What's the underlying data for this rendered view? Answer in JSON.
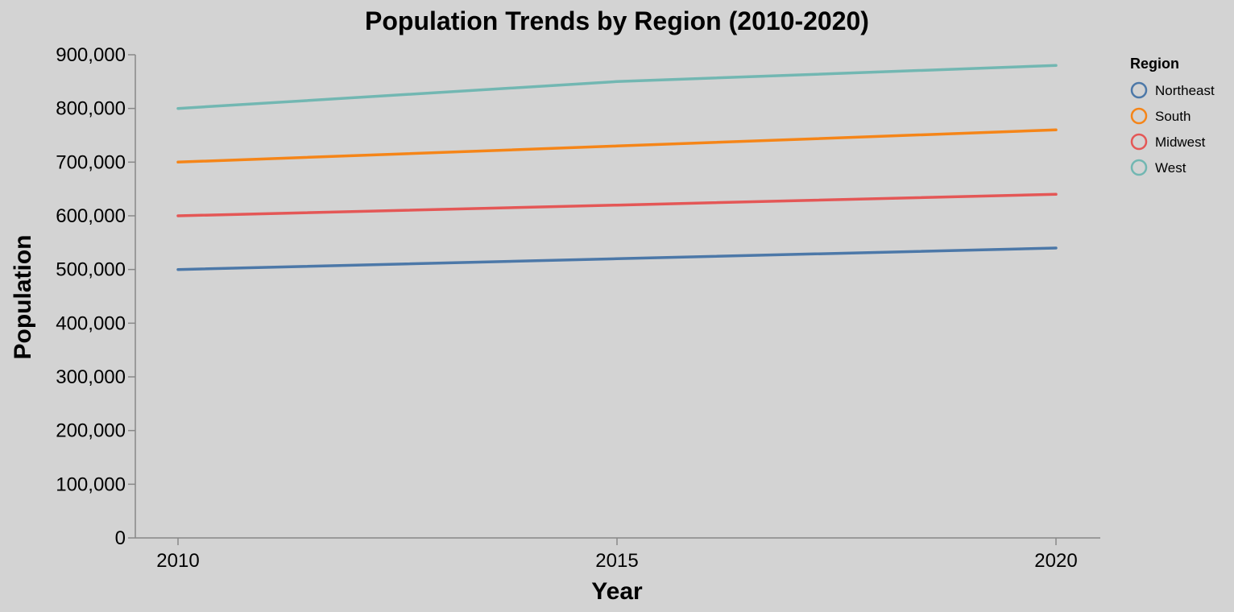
{
  "chart_data": {
    "type": "line",
    "title": "Population Trends by Region (2010-2020)",
    "xlabel": "Year",
    "ylabel": "Population",
    "x": [
      2010,
      2015,
      2020
    ],
    "x_ticks": [
      "2010",
      "2015",
      "2020"
    ],
    "ylim": [
      0,
      900000
    ],
    "y_ticks": [
      "0",
      "100,000",
      "200,000",
      "300,000",
      "400,000",
      "500,000",
      "600,000",
      "700,000",
      "800,000",
      "900,000"
    ],
    "grid": false,
    "legend": {
      "title": "Region",
      "placement": "top-right"
    },
    "series": [
      {
        "name": "Northeast",
        "color": "#4c78a8",
        "values": [
          500000,
          520000,
          540000
        ]
      },
      {
        "name": "South",
        "color": "#f58518",
        "values": [
          700000,
          730000,
          760000
        ]
      },
      {
        "name": "Midwest",
        "color": "#e45756",
        "values": [
          600000,
          620000,
          640000
        ]
      },
      {
        "name": "West",
        "color": "#72b7b2",
        "values": [
          800000,
          850000,
          880000
        ]
      }
    ]
  }
}
